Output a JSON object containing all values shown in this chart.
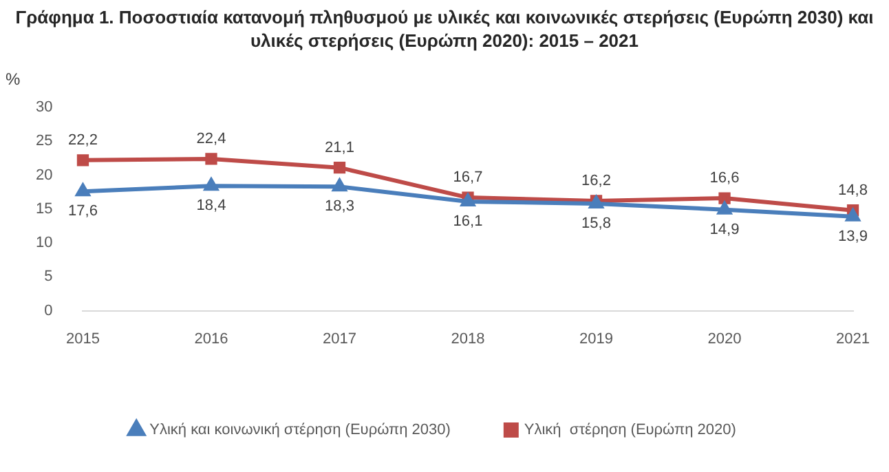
{
  "chart_data": {
    "type": "line",
    "title": "Γράφημα 1. Ποσοστιαία κατανομή πληθυσμού με υλικές και κοινωνικές στερήσεις (Ευρώπη 2030) και υλικές στερήσεις (Ευρώπη 2020): 2015 – 2021",
    "ylabel": "%",
    "categories": [
      "2015",
      "2016",
      "2017",
      "2018",
      "2019",
      "2020",
      "2021"
    ],
    "series": [
      {
        "name": "Υλική και κοινωνική στέρηση (Ευρώπη 2030)",
        "color": "#4a7ebb",
        "marker": "triangle",
        "values": [
          17.6,
          18.4,
          18.3,
          16.1,
          15.8,
          14.9,
          13.9
        ],
        "value_labels": [
          "17,6",
          "18,4",
          "18,3",
          "16,1",
          "15,8",
          "14,9",
          "13,9"
        ]
      },
      {
        "name": "Υλική  στέρηση (Ευρώπη 2020)",
        "color": "#be4b48",
        "marker": "square",
        "values": [
          22.2,
          22.4,
          21.1,
          16.7,
          16.2,
          16.6,
          14.8
        ],
        "value_labels": [
          "22,2",
          "22,4",
          "21,1",
          "16,7",
          "16,2",
          "16,6",
          "14,8"
        ]
      }
    ],
    "ylim": [
      0,
      30
    ],
    "yticks": [
      0,
      5,
      10,
      15,
      20,
      25,
      30
    ],
    "grid": false,
    "legend": "bottom",
    "line_style": "solid"
  }
}
